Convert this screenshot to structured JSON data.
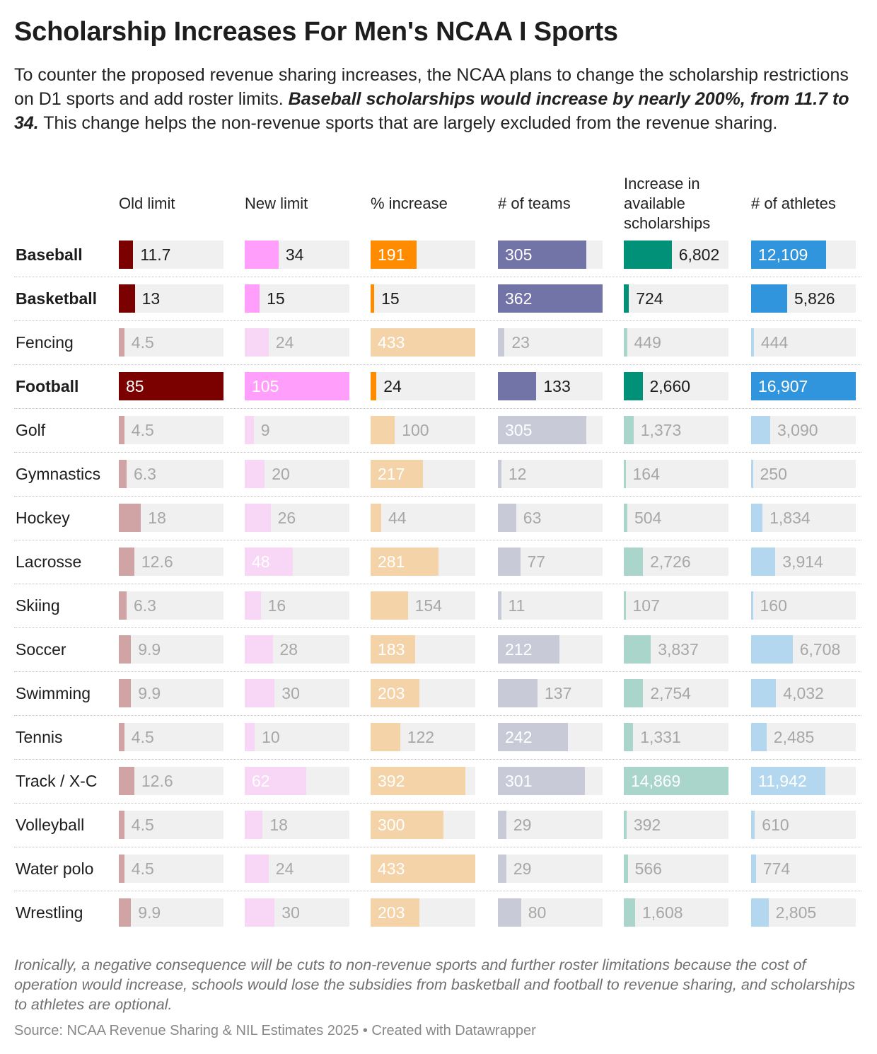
{
  "title": "Scholarship Increases For Men's NCAA I Sports",
  "description": {
    "part1": "To counter the proposed revenue sharing increases, the NCAA plans to change the scholarship restrictions on D1 sports and add roster limits. ",
    "emphasis": "Baseball scholarships would increase by nearly 200%, from 11.7 to 34.",
    "part2": " This change helps the non-revenue sports that are largely excluded from the revenue sharing."
  },
  "note": "Ironically, a negative consequence will be cuts to non-revenue sports and further roster limitations because the cost of operation would increase, schools would lose the subsidies from basketball and football to revenue sharing, and scholarships to athletes are optional.",
  "source": "Source: NCAA Revenue Sharing & NIL Estimates 2025 • Created with Datawrapper",
  "chart_data": {
    "type": "table",
    "columns": [
      {
        "key": "old",
        "label": "Old limit",
        "color": "#7b0000",
        "max": 85
      },
      {
        "key": "new",
        "label": "New limit",
        "color": "#ff9ffb",
        "max": 105
      },
      {
        "key": "pct",
        "label": "% increase",
        "color": "#ff8c00",
        "max": 433
      },
      {
        "key": "teams",
        "label": "# of teams",
        "color": "#7274a8",
        "max": 362
      },
      {
        "key": "inc",
        "label": "Increase in available scholarships",
        "color": "#009178",
        "max": 14869
      },
      {
        "key": "ath",
        "label": "# of athletes",
        "color": "#3095dc",
        "max": 16907
      }
    ],
    "faded_colors": [
      "#d0a4a4",
      "#f8d6f5",
      "#f4d3a8",
      "#c9cad8",
      "#aad5ca",
      "#b3d7ee"
    ],
    "rows": [
      {
        "sport": "Baseball",
        "highlight": true,
        "values": [
          11.7,
          34,
          191,
          305,
          6802,
          12109
        ],
        "labels": [
          "11.7",
          "34",
          "191",
          "305",
          "6,802",
          "12,109"
        ]
      },
      {
        "sport": "Basketball",
        "highlight": true,
        "values": [
          13,
          15,
          15,
          362,
          724,
          5826
        ],
        "labels": [
          "13",
          "15",
          "15",
          "362",
          "724",
          "5,826"
        ]
      },
      {
        "sport": "Fencing",
        "highlight": false,
        "values": [
          4.5,
          24,
          433,
          23,
          449,
          444
        ],
        "labels": [
          "4.5",
          "24",
          "433",
          "23",
          "449",
          "444"
        ]
      },
      {
        "sport": "Football",
        "highlight": true,
        "values": [
          85,
          105,
          24,
          133,
          2660,
          16907
        ],
        "labels": [
          "85",
          "105",
          "24",
          "133",
          "2,660",
          "16,907"
        ]
      },
      {
        "sport": "Golf",
        "highlight": false,
        "values": [
          4.5,
          9,
          100,
          305,
          1373,
          3090
        ],
        "labels": [
          "4.5",
          "9",
          "100",
          "305",
          "1,373",
          "3,090"
        ]
      },
      {
        "sport": "Gymnastics",
        "highlight": false,
        "values": [
          6.3,
          20,
          217,
          12,
          164,
          250
        ],
        "labels": [
          "6.3",
          "20",
          "217",
          "12",
          "164",
          "250"
        ]
      },
      {
        "sport": "Hockey",
        "highlight": false,
        "values": [
          18,
          26,
          44,
          63,
          504,
          1834
        ],
        "labels": [
          "18",
          "26",
          "44",
          "63",
          "504",
          "1,834"
        ]
      },
      {
        "sport": "Lacrosse",
        "highlight": false,
        "values": [
          12.6,
          48,
          281,
          77,
          2726,
          3914
        ],
        "labels": [
          "12.6",
          "48",
          "281",
          "77",
          "2,726",
          "3,914"
        ]
      },
      {
        "sport": "Skiing",
        "highlight": false,
        "values": [
          6.3,
          16,
          154,
          11,
          107,
          160
        ],
        "labels": [
          "6.3",
          "16",
          "154",
          "11",
          "107",
          "160"
        ]
      },
      {
        "sport": "Soccer",
        "highlight": false,
        "values": [
          9.9,
          28,
          183,
          212,
          3837,
          6708
        ],
        "labels": [
          "9.9",
          "28",
          "183",
          "212",
          "3,837",
          "6,708"
        ]
      },
      {
        "sport": "Swimming",
        "highlight": false,
        "values": [
          9.9,
          30,
          203,
          137,
          2754,
          4032
        ],
        "labels": [
          "9.9",
          "30",
          "203",
          "137",
          "2,754",
          "4,032"
        ]
      },
      {
        "sport": "Tennis",
        "highlight": false,
        "values": [
          4.5,
          10,
          122,
          242,
          1331,
          2485
        ],
        "labels": [
          "4.5",
          "10",
          "122",
          "242",
          "1,331",
          "2,485"
        ]
      },
      {
        "sport": "Track / X-C",
        "highlight": false,
        "values": [
          12.6,
          62,
          392,
          301,
          14869,
          11942
        ],
        "labels": [
          "12.6",
          "62",
          "392",
          "301",
          "14,869",
          "11,942"
        ]
      },
      {
        "sport": "Volleyball",
        "highlight": false,
        "values": [
          4.5,
          18,
          300,
          29,
          392,
          610
        ],
        "labels": [
          "4.5",
          "18",
          "300",
          "29",
          "392",
          "610"
        ]
      },
      {
        "sport": "Water polo",
        "highlight": false,
        "values": [
          4.5,
          24,
          433,
          29,
          566,
          774
        ],
        "labels": [
          "4.5",
          "24",
          "433",
          "29",
          "566",
          "774"
        ]
      },
      {
        "sport": "Wrestling",
        "highlight": false,
        "values": [
          9.9,
          30,
          203,
          80,
          1608,
          2805
        ],
        "labels": [
          "9.9",
          "30",
          "203",
          "80",
          "1,608",
          "2,805"
        ]
      }
    ]
  }
}
